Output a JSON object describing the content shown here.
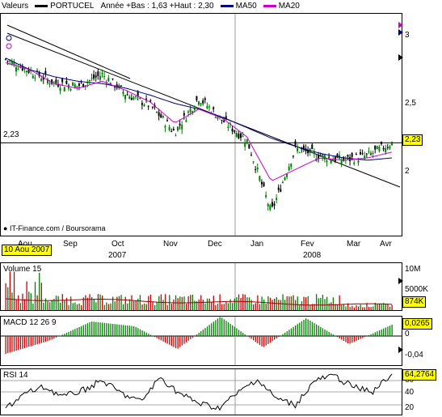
{
  "header": {
    "title": "Valeurs",
    "symbol": "PORTUCEL",
    "range": "Année +Bas : 1,63 +Haut : 2,30",
    "ma50": "MA50",
    "ma20": "MA20",
    "colors": {
      "symbol": "#000000",
      "ma50": "#000080",
      "ma20": "#cc00cc"
    }
  },
  "price": {
    "yticks": [
      "3",
      "2,5",
      "2"
    ],
    "hline_label": "2,23",
    "current_value": "2,23",
    "source": "IT-Finance.com / Boursorama",
    "months": [
      "Aou",
      "Sep",
      "Oct",
      "Nov",
      "Dec",
      "Jan",
      "Fev",
      "Mar",
      "Avr"
    ],
    "years": [
      "2007",
      "2008"
    ],
    "date_box": "10 Aou 2007"
  },
  "volume": {
    "title": "Volume 15",
    "yticks": [
      "10M",
      "5000K"
    ],
    "current_value": "874K"
  },
  "macd": {
    "title": "MACD 12 26 9",
    "yticks": [
      "0",
      "-0,04"
    ],
    "current_value": "0,0265"
  },
  "rsi": {
    "title": "RSI 14",
    "yticks": [
      "60",
      "40",
      "20"
    ],
    "current_value": "64,2764"
  },
  "chart_data": {
    "type": "line",
    "title": "PORTUCEL",
    "series": [
      {
        "name": "PORTUCEL",
        "x": [
          "2007-08-10",
          "2007-08-25",
          "2007-09-10",
          "2007-09-25",
          "2007-10-10",
          "2007-10-25",
          "2007-11-10",
          "2007-11-25",
          "2007-12-10",
          "2007-12-25",
          "2008-01-10",
          "2008-01-22",
          "2008-02-05",
          "2008-02-20",
          "2008-03-05",
          "2008-03-15",
          "2008-03-25"
        ],
        "values": [
          2.95,
          2.85,
          2.75,
          2.72,
          2.82,
          2.65,
          2.55,
          2.32,
          2.62,
          2.42,
          2.25,
          1.63,
          2.18,
          2.12,
          2.08,
          2.12,
          2.23
        ]
      },
      {
        "name": "MA50",
        "values": [
          2.96,
          2.86,
          2.8,
          2.76,
          2.74,
          2.7,
          2.64,
          2.57,
          2.52,
          2.45,
          2.36,
          2.27,
          2.2,
          2.14,
          2.1,
          2.08,
          2.1
        ]
      },
      {
        "name": "MA20",
        "values": [
          2.92,
          2.86,
          2.74,
          2.7,
          2.76,
          2.68,
          2.58,
          2.4,
          2.52,
          2.44,
          2.28,
          1.9,
          2.0,
          2.1,
          2.08,
          2.1,
          2.15
        ]
      }
    ],
    "ylim": [
      1.5,
      3.3
    ],
    "hline": 2.23
  }
}
